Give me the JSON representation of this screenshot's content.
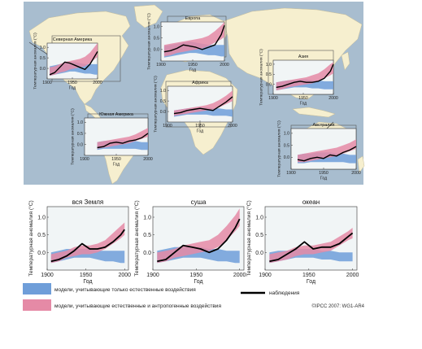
{
  "colors": {
    "ocean": "#a8bdcf",
    "land": "#f6efcf",
    "natural": "#6f9ed9",
    "anthro": "#e58aa6",
    "observations": "#000000",
    "panel_bg": "#f1f5f6"
  },
  "legend": {
    "natural": "модели, учитывающие только естественные воздействия",
    "anthro": "модели, учитывающие естественные и антропогенные воздействия",
    "observations": "наблюдения"
  },
  "credit": "©IPCC 2007: WG1-AR4",
  "chart_data": [
    {
      "type": "line",
      "id": "north-america",
      "title": "Северная Америка",
      "xlabel": "Год",
      "ylabel": "Температурная аномалия (°C)",
      "xlim": [
        1900,
        2000
      ],
      "ylim": [
        -0.5,
        1.2
      ],
      "xticks": [
        "1900",
        "1950",
        "2000"
      ],
      "yticks": [
        "0.0",
        "0.5",
        "1.0"
      ],
      "years": [
        1905,
        1915,
        1925,
        1935,
        1945,
        1955,
        1965,
        1975,
        1985,
        1995,
        2000
      ],
      "observations": [
        -0.3,
        -0.2,
        0.05,
        0.3,
        0.25,
        0.15,
        0.05,
        -0.05,
        0.2,
        0.6,
        0.8
      ],
      "natural_low": [
        -0.35,
        -0.3,
        -0.25,
        -0.2,
        -0.15,
        -0.15,
        -0.2,
        -0.25,
        -0.25,
        -0.3,
        -0.3
      ],
      "natural_high": [
        0.1,
        0.15,
        0.2,
        0.25,
        0.3,
        0.3,
        0.25,
        0.2,
        0.2,
        0.2,
        0.2
      ],
      "anthro_low": [
        -0.35,
        -0.3,
        -0.2,
        -0.15,
        -0.05,
        0.0,
        0.05,
        0.1,
        0.25,
        0.45,
        0.55
      ],
      "anthro_high": [
        0.05,
        0.1,
        0.2,
        0.3,
        0.35,
        0.4,
        0.45,
        0.55,
        0.75,
        1.05,
        1.2
      ]
    },
    {
      "type": "line",
      "id": "europe",
      "title": "Европа",
      "xlabel": "Год",
      "ylabel": "Температурная аномалия (°C)",
      "xlim": [
        1900,
        2000
      ],
      "ylim": [
        -0.5,
        1.2
      ],
      "xticks": [
        "1900",
        "1950",
        "2000"
      ],
      "yticks": [
        "0.0",
        "0.5",
        "1.0"
      ],
      "years": [
        1905,
        1915,
        1925,
        1935,
        1945,
        1955,
        1965,
        1975,
        1985,
        1995,
        2000
      ],
      "observations": [
        -0.1,
        -0.05,
        0.05,
        0.2,
        0.15,
        0.1,
        0.0,
        0.1,
        0.2,
        0.65,
        1.05
      ],
      "natural_low": [
        -0.35,
        -0.3,
        -0.25,
        -0.2,
        -0.15,
        -0.15,
        -0.2,
        -0.25,
        -0.25,
        -0.3,
        -0.3
      ],
      "natural_high": [
        0.15,
        0.2,
        0.25,
        0.3,
        0.35,
        0.3,
        0.25,
        0.2,
        0.2,
        0.2,
        0.2
      ],
      "anthro_low": [
        -0.3,
        -0.25,
        -0.15,
        -0.1,
        -0.05,
        0.0,
        0.05,
        0.15,
        0.3,
        0.45,
        0.55
      ],
      "anthro_high": [
        0.2,
        0.25,
        0.3,
        0.35,
        0.4,
        0.45,
        0.5,
        0.6,
        0.8,
        1.05,
        1.2
      ]
    },
    {
      "type": "line",
      "id": "asia",
      "title": "Азия",
      "xlabel": "Год",
      "ylabel": "Температурная аномалия (°C)",
      "xlim": [
        1900,
        2000
      ],
      "ylim": [
        -0.5,
        1.2
      ],
      "xticks": [
        "1900",
        "1950",
        "2000"
      ],
      "yticks": [
        "0.0",
        "0.5",
        "1.0"
      ],
      "years": [
        1905,
        1915,
        1925,
        1935,
        1945,
        1955,
        1965,
        1975,
        1985,
        1995,
        2000
      ],
      "observations": [
        -0.15,
        -0.1,
        0.0,
        0.1,
        0.15,
        0.1,
        0.1,
        0.15,
        0.3,
        0.65,
        1.0
      ],
      "natural_low": [
        -0.3,
        -0.25,
        -0.2,
        -0.15,
        -0.15,
        -0.15,
        -0.2,
        -0.2,
        -0.25,
        -0.25,
        -0.25
      ],
      "natural_high": [
        0.1,
        0.15,
        0.2,
        0.2,
        0.25,
        0.25,
        0.2,
        0.2,
        0.15,
        0.15,
        0.15
      ],
      "anthro_low": [
        -0.3,
        -0.25,
        -0.15,
        -0.1,
        -0.05,
        0.0,
        0.05,
        0.15,
        0.3,
        0.45,
        0.55
      ],
      "anthro_high": [
        0.1,
        0.15,
        0.2,
        0.25,
        0.3,
        0.35,
        0.45,
        0.55,
        0.75,
        1.0,
        1.1
      ]
    },
    {
      "type": "line",
      "id": "africa",
      "title": "Африка",
      "xlabel": "Год",
      "ylabel": "Температурная аномалия (°C)",
      "xlim": [
        1900,
        2000
      ],
      "ylim": [
        -0.5,
        1.2
      ],
      "xticks": [
        "1900",
        "1950",
        "2000"
      ],
      "yticks": [
        "0.0",
        "0.5",
        "1.0"
      ],
      "years": [
        1910,
        1920,
        1930,
        1940,
        1950,
        1960,
        1970,
        1980,
        1990,
        2000
      ],
      "observations": [
        -0.1,
        -0.05,
        0.05,
        0.1,
        0.15,
        0.1,
        0.05,
        0.25,
        0.45,
        0.7
      ],
      "natural_low": [
        -0.25,
        -0.2,
        -0.15,
        -0.15,
        -0.15,
        -0.15,
        -0.2,
        -0.2,
        -0.2,
        -0.25
      ],
      "natural_high": [
        0.05,
        0.1,
        0.15,
        0.15,
        0.2,
        0.2,
        0.15,
        0.15,
        0.1,
        0.1
      ],
      "anthro_low": [
        -0.2,
        -0.15,
        -0.1,
        -0.05,
        0.0,
        0.05,
        0.1,
        0.2,
        0.35,
        0.5
      ],
      "anthro_high": [
        0.05,
        0.1,
        0.15,
        0.2,
        0.25,
        0.3,
        0.4,
        0.55,
        0.75,
        1.0
      ]
    },
    {
      "type": "line",
      "id": "south-america",
      "title": "Южная Америка",
      "xlabel": "Год",
      "ylabel": "Температурная аномалия (°C)",
      "xlim": [
        1900,
        2000
      ],
      "ylim": [
        -0.5,
        1.2
      ],
      "xticks": [
        "1900",
        "1950",
        "2000"
      ],
      "yticks": [
        "0.0",
        "0.5",
        "1.0"
      ],
      "years": [
        1920,
        1930,
        1940,
        1950,
        1960,
        1970,
        1980,
        1990,
        2000
      ],
      "observations": [
        -0.15,
        -0.1,
        0.05,
        0.1,
        0.05,
        0.15,
        0.2,
        0.3,
        0.5
      ],
      "natural_low": [
        -0.25,
        -0.2,
        -0.2,
        -0.2,
        -0.2,
        -0.2,
        -0.2,
        -0.25,
        -0.25
      ],
      "natural_high": [
        0.1,
        0.15,
        0.15,
        0.2,
        0.2,
        0.15,
        0.15,
        0.1,
        0.1
      ],
      "anthro_low": [
        -0.2,
        -0.15,
        -0.1,
        -0.05,
        0.0,
        0.05,
        0.15,
        0.25,
        0.35
      ],
      "anthro_high": [
        0.1,
        0.15,
        0.2,
        0.25,
        0.3,
        0.35,
        0.45,
        0.6,
        0.75
      ]
    },
    {
      "type": "line",
      "id": "australia",
      "title": "Австралия",
      "xlabel": "Год",
      "ylabel": "Температурная аномалия (°C)",
      "xlim": [
        1900,
        2000
      ],
      "ylim": [
        -0.5,
        1.2
      ],
      "xticks": [
        "1900",
        "1950",
        "2000"
      ],
      "yticks": [
        "0.0",
        "0.5",
        "1.0"
      ],
      "years": [
        1910,
        1920,
        1930,
        1940,
        1950,
        1960,
        1970,
        1980,
        1990,
        2000
      ],
      "observations": [
        -0.1,
        -0.15,
        -0.05,
        0.0,
        -0.05,
        0.1,
        0.05,
        0.2,
        0.3,
        0.45
      ],
      "natural_low": [
        -0.25,
        -0.25,
        -0.2,
        -0.2,
        -0.2,
        -0.2,
        -0.2,
        -0.2,
        -0.25,
        -0.25
      ],
      "natural_high": [
        0.1,
        0.15,
        0.15,
        0.2,
        0.2,
        0.2,
        0.15,
        0.15,
        0.1,
        0.1
      ],
      "anthro_low": [
        -0.2,
        -0.2,
        -0.15,
        -0.1,
        -0.05,
        0.0,
        0.05,
        0.15,
        0.25,
        0.35
      ],
      "anthro_high": [
        0.1,
        0.15,
        0.2,
        0.25,
        0.3,
        0.35,
        0.4,
        0.5,
        0.6,
        0.75
      ]
    },
    {
      "type": "line",
      "id": "global",
      "title": "вся Земля",
      "xlabel": "Год",
      "ylabel": "Температурная аномалия (°C)",
      "xlim": [
        1900,
        2005
      ],
      "ylim": [
        -0.5,
        1.3
      ],
      "xticks": [
        "1900",
        "1950",
        "2000"
      ],
      "yticks": [
        "0.0",
        "0.5",
        "1.0"
      ],
      "years": [
        1905,
        1915,
        1925,
        1935,
        1945,
        1955,
        1965,
        1975,
        1985,
        1995,
        2000
      ],
      "observations": [
        -0.25,
        -0.2,
        -0.1,
        0.05,
        0.25,
        0.1,
        0.1,
        0.15,
        0.3,
        0.5,
        0.65
      ],
      "natural_low": [
        -0.3,
        -0.25,
        -0.2,
        -0.15,
        -0.15,
        -0.15,
        -0.2,
        -0.25,
        -0.25,
        -0.3,
        -0.3
      ],
      "natural_high": [
        0.0,
        0.05,
        0.1,
        0.1,
        0.1,
        0.1,
        0.05,
        0.05,
        0.05,
        0.05,
        0.05
      ],
      "anthro_low": [
        -0.3,
        -0.25,
        -0.15,
        -0.1,
        -0.05,
        -0.05,
        0.0,
        0.1,
        0.25,
        0.4,
        0.5
      ],
      "anthro_high": [
        -0.05,
        0.0,
        0.05,
        0.15,
        0.2,
        0.2,
        0.25,
        0.35,
        0.55,
        0.75,
        0.85
      ]
    },
    {
      "type": "line",
      "id": "land",
      "title": "суша",
      "xlabel": "Год",
      "ylabel": "Температурная аномалия (°C)",
      "xlim": [
        1900,
        2005
      ],
      "ylim": [
        -0.5,
        1.3
      ],
      "xticks": [
        "1900",
        "1950",
        "2000"
      ],
      "yticks": [
        "0.0",
        "0.5",
        "1.0"
      ],
      "years": [
        1905,
        1915,
        1925,
        1935,
        1945,
        1955,
        1965,
        1975,
        1985,
        1995,
        2000
      ],
      "observations": [
        -0.25,
        -0.2,
        0.0,
        0.2,
        0.15,
        0.1,
        0.0,
        0.1,
        0.35,
        0.7,
        0.95
      ],
      "natural_low": [
        -0.3,
        -0.25,
        -0.2,
        -0.15,
        -0.15,
        -0.15,
        -0.2,
        -0.25,
        -0.25,
        -0.3,
        -0.3
      ],
      "natural_high": [
        0.05,
        0.1,
        0.15,
        0.15,
        0.15,
        0.15,
        0.1,
        0.1,
        0.05,
        0.05,
        0.05
      ],
      "anthro_low": [
        -0.3,
        -0.25,
        -0.15,
        -0.1,
        -0.05,
        0.0,
        0.05,
        0.15,
        0.35,
        0.6,
        0.75
      ],
      "anthro_high": [
        0.0,
        0.05,
        0.1,
        0.2,
        0.25,
        0.3,
        0.35,
        0.5,
        0.75,
        1.05,
        1.25
      ]
    },
    {
      "type": "line",
      "id": "ocean",
      "title": "океан",
      "xlabel": "Год",
      "ylabel": "Температурная аномалия (°C)",
      "xlim": [
        1900,
        2005
      ],
      "ylim": [
        -0.5,
        1.3
      ],
      "xticks": [
        "1900",
        "1950",
        "2000"
      ],
      "yticks": [
        "0.0",
        "0.5",
        "1.0"
      ],
      "years": [
        1905,
        1915,
        1925,
        1935,
        1945,
        1955,
        1965,
        1975,
        1985,
        1995,
        2000
      ],
      "observations": [
        -0.25,
        -0.2,
        -0.05,
        0.1,
        0.3,
        0.1,
        0.15,
        0.15,
        0.25,
        0.45,
        0.55
      ],
      "natural_low": [
        -0.3,
        -0.25,
        -0.2,
        -0.15,
        -0.15,
        -0.15,
        -0.2,
        -0.2,
        -0.25,
        -0.25,
        -0.25
      ],
      "natural_high": [
        0.0,
        0.05,
        0.05,
        0.1,
        0.1,
        0.1,
        0.05,
        0.05,
        0.0,
        0.0,
        0.0
      ],
      "anthro_low": [
        -0.3,
        -0.25,
        -0.2,
        -0.1,
        -0.05,
        -0.05,
        0.0,
        0.05,
        0.2,
        0.35,
        0.4
      ],
      "anthro_high": [
        -0.05,
        0.0,
        0.05,
        0.15,
        0.2,
        0.2,
        0.25,
        0.3,
        0.45,
        0.6,
        0.7
      ]
    }
  ]
}
